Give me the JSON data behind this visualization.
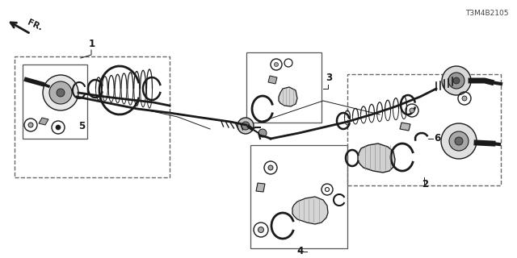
{
  "bg_color": "#ffffff",
  "lc": "#1a1a1a",
  "gray": "#888888",
  "lgray": "#cccccc",
  "dgray": "#444444",
  "part_stamp": "T3M4B2105",
  "figsize": [
    6.4,
    3.2
  ],
  "dpi": 100
}
